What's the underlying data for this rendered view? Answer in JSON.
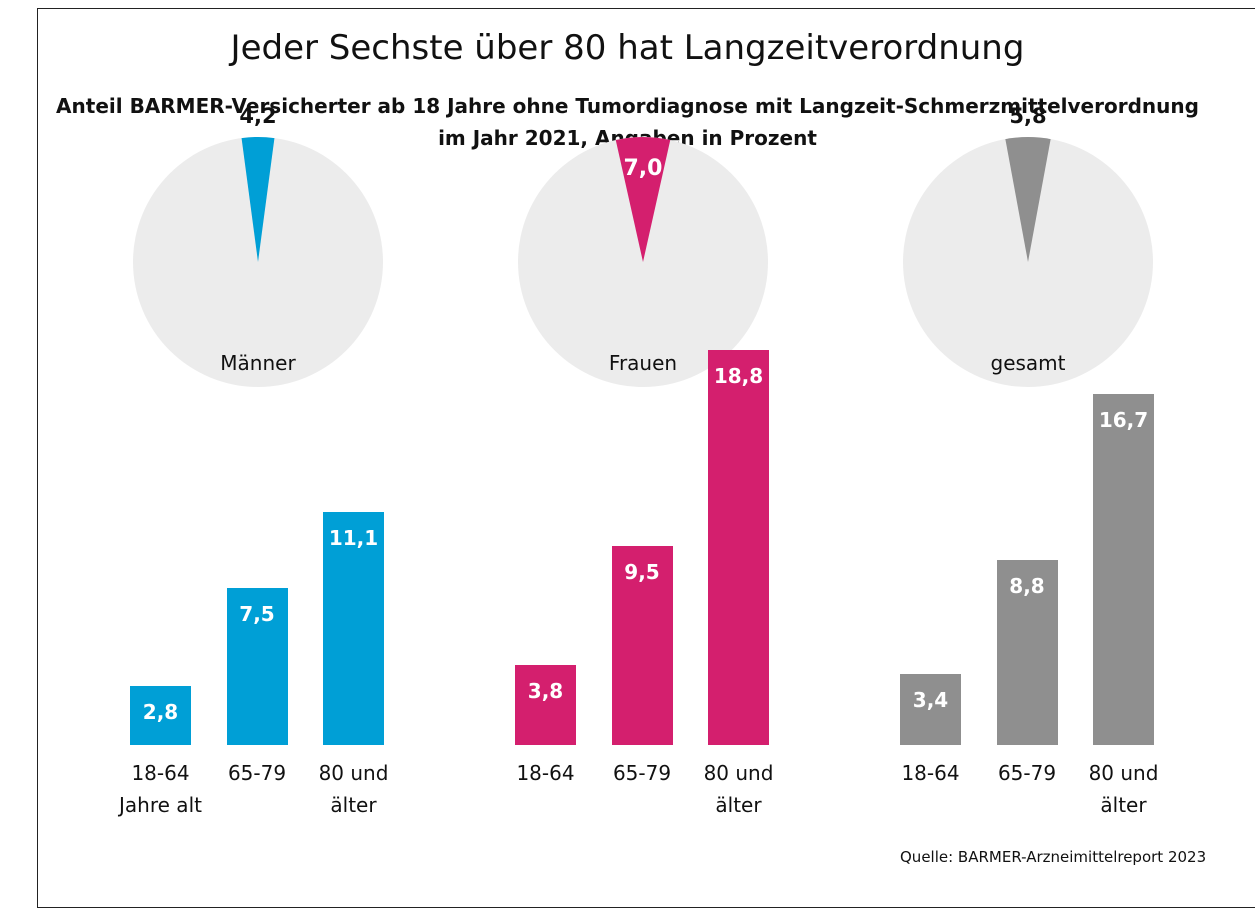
{
  "header": {
    "title": "Jeder Sechste über 80 hat Langzeitverordnung",
    "subtitle": "Anteil BARMER-Versicherter ab 18 Jahre ohne Tumordiagnose mit Langzeit-Schmerzmittelverordnung\nim Jahr 2021, Angaben in Prozent"
  },
  "source": "Quelle: BARMER-Arzneimittelreport 2023",
  "chart_data": [
    {
      "type": "pie",
      "label": "Männer",
      "values": [
        4.2
      ],
      "value_labels": [
        "4,2"
      ],
      "color": "#009fd6"
    },
    {
      "type": "bar",
      "categories": [
        "18-64\nJahre alt",
        "65-79",
        "80 und\nälter"
      ],
      "values": [
        2.8,
        7.5,
        11.1
      ],
      "value_labels": [
        "2,8",
        "7,5",
        "11,1"
      ],
      "color": "#009fd6"
    },
    {
      "type": "pie",
      "label": "Frauen",
      "values": [
        7.0
      ],
      "value_labels": [
        "7,0"
      ],
      "color": "#d41f6e"
    },
    {
      "type": "bar",
      "categories": [
        "18-64",
        "65-79",
        "80 und\nälter"
      ],
      "values": [
        3.8,
        9.5,
        18.8
      ],
      "value_labels": [
        "3,8",
        "9,5",
        "18,8"
      ],
      "color": "#d41f6e"
    },
    {
      "type": "pie",
      "label": "gesamt",
      "values": [
        5.8
      ],
      "value_labels": [
        "5,8"
      ],
      "color": "#8f8f8f"
    },
    {
      "type": "bar",
      "categories": [
        "18-64",
        "65-79",
        "80 und\nälter"
      ],
      "values": [
        3.4,
        8.8,
        16.7
      ],
      "value_labels": [
        "3,4",
        "8,8",
        "16,7"
      ],
      "color": "#8f8f8f"
    }
  ]
}
